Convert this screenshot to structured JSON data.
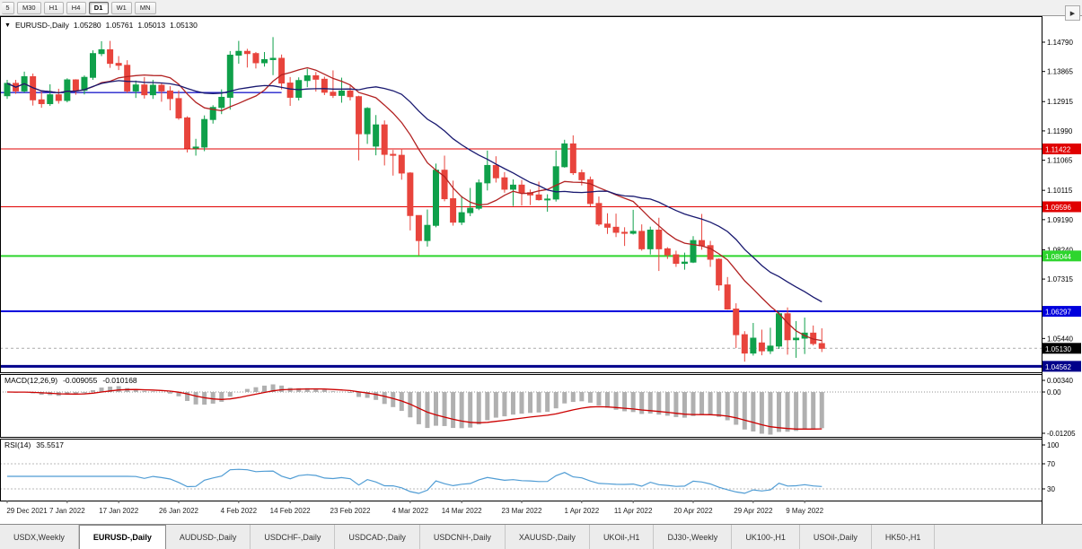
{
  "toolbar": {
    "timeframes": [
      "5",
      "M30",
      "H1",
      "H4",
      "D1",
      "W1",
      "MN"
    ],
    "active_timeframe": "D1"
  },
  "chart": {
    "symbol": "EURUSD-,Daily",
    "ohlc": {
      "open": "1.05280",
      "high": "1.05761",
      "low": "1.05013",
      "close": "1.05130"
    },
    "price_axis_ticks": [
      1.1479,
      1.13865,
      1.12915,
      1.1199,
      1.11065,
      1.10115,
      1.0919,
      1.0824,
      1.07315,
      1.0544
    ],
    "price_lines": [
      {
        "price": 1.11422,
        "label": "1.11422",
        "color": "#e00000",
        "width": 1
      },
      {
        "price": 1.09596,
        "label": "1.09596",
        "color": "#e00000",
        "width": 1
      },
      {
        "price": 1.08044,
        "label": "1.08044",
        "color": "#2ed52e",
        "width": 2
      },
      {
        "price": 1.06297,
        "label": "1.06297",
        "color": "#0000dd",
        "width": 2
      },
      {
        "price": 1.04562,
        "label": "1.04562",
        "color": "#00008b",
        "width": 3
      }
    ],
    "current_price": {
      "price": 1.0513,
      "label": "1.05130",
      "color": "#000000"
    },
    "trend_segment": {
      "price": 1.132,
      "start_index": 0,
      "end_index": 32,
      "color": "#2222cc"
    },
    "colors": {
      "up": "#0fa04a",
      "down": "#e8443c",
      "ma_fast": "#b22222",
      "ma_slow": "#191970"
    }
  },
  "chart_data": {
    "type": "candlestick",
    "title": "EURUSD-,Daily",
    "ylim": [
      1.044,
      1.156
    ],
    "x_labels": [
      "29 Dec 2021",
      "7 Jan 2022",
      "17 Jan 2022",
      "26 Jan 2022",
      "4 Feb 2022",
      "14 Feb 2022",
      "23 Feb 2022",
      "4 Mar 2022",
      "14 Mar 2022",
      "23 Mar 2022",
      "1 Apr 2022",
      "11 Apr 2022",
      "20 Apr 2022",
      "29 Apr 2022",
      "9 May 2022"
    ],
    "x_label_indices": [
      0,
      7,
      13,
      20,
      27,
      33,
      40,
      47,
      53,
      60,
      67,
      73,
      80,
      87,
      93
    ],
    "candles": [
      [
        1.131,
        1.136,
        1.13,
        1.1349
      ],
      [
        1.1349,
        1.136,
        1.1316,
        1.1325
      ],
      [
        1.1325,
        1.1386,
        1.132,
        1.137
      ],
      [
        1.137,
        1.138,
        1.1279,
        1.1297
      ],
      [
        1.1297,
        1.1323,
        1.1272,
        1.1285
      ],
      [
        1.1285,
        1.1346,
        1.1278,
        1.1313
      ],
      [
        1.1313,
        1.1332,
        1.1285,
        1.1295
      ],
      [
        1.1295,
        1.1365,
        1.1289,
        1.136
      ],
      [
        1.136,
        1.1362,
        1.1313,
        1.1327
      ],
      [
        1.1327,
        1.1374,
        1.1314,
        1.1368
      ],
      [
        1.1368,
        1.1453,
        1.136,
        1.1443
      ],
      [
        1.1443,
        1.1482,
        1.1435,
        1.1455
      ],
      [
        1.1455,
        1.1483,
        1.1398,
        1.1412
      ],
      [
        1.1412,
        1.1435,
        1.1391,
        1.1406
      ],
      [
        1.1406,
        1.1422,
        1.1319,
        1.1325
      ],
      [
        1.1325,
        1.1358,
        1.1303,
        1.1344
      ],
      [
        1.1344,
        1.1369,
        1.1301,
        1.1313
      ],
      [
        1.1313,
        1.136,
        1.13,
        1.1343
      ],
      [
        1.1343,
        1.1349,
        1.1291,
        1.1325
      ],
      [
        1.1325,
        1.134,
        1.1264,
        1.1301
      ],
      [
        1.1301,
        1.1327,
        1.1234,
        1.124
      ],
      [
        1.124,
        1.1245,
        1.1131,
        1.1145
      ],
      [
        1.1145,
        1.1174,
        1.1121,
        1.1148
      ],
      [
        1.1148,
        1.1248,
        1.1135,
        1.1235
      ],
      [
        1.1235,
        1.128,
        1.1222,
        1.1273
      ],
      [
        1.1273,
        1.133,
        1.1252,
        1.1305
      ],
      [
        1.1305,
        1.1451,
        1.1266,
        1.1438
      ],
      [
        1.1438,
        1.1483,
        1.1411,
        1.145
      ],
      [
        1.145,
        1.1458,
        1.1399,
        1.1443
      ],
      [
        1.1443,
        1.1448,
        1.1396,
        1.1414
      ],
      [
        1.1414,
        1.1448,
        1.1402,
        1.1424
      ],
      [
        1.1424,
        1.1495,
        1.1375,
        1.1428
      ],
      [
        1.1428,
        1.144,
        1.133,
        1.135
      ],
      [
        1.135,
        1.1369,
        1.1278,
        1.1305
      ],
      [
        1.1305,
        1.1368,
        1.1295,
        1.1358
      ],
      [
        1.1358,
        1.1395,
        1.1337,
        1.1373
      ],
      [
        1.1373,
        1.1385,
        1.1323,
        1.1362
      ],
      [
        1.1362,
        1.137,
        1.1312,
        1.1321
      ],
      [
        1.1321,
        1.139,
        1.1303,
        1.1311
      ],
      [
        1.1311,
        1.1367,
        1.1288,
        1.1325
      ],
      [
        1.1325,
        1.1343,
        1.1295,
        1.1307
      ],
      [
        1.1307,
        1.131,
        1.1106,
        1.119
      ],
      [
        1.119,
        1.1274,
        1.1158,
        1.127
      ],
      [
        1.1151,
        1.1249,
        1.1122,
        1.1218
      ],
      [
        1.1218,
        1.1232,
        1.109,
        1.1125
      ],
      [
        1.1125,
        1.1139,
        1.1058,
        1.1122
      ],
      [
        1.1122,
        1.1143,
        1.1045,
        1.1066
      ],
      [
        1.1066,
        1.1069,
        1.0885,
        1.0932
      ],
      [
        1.0932,
        1.0932,
        1.0806,
        1.0853
      ],
      [
        1.0853,
        1.0951,
        1.0834,
        1.0901
      ],
      [
        1.0901,
        1.1096,
        1.0895,
        1.1075
      ],
      [
        1.1075,
        1.1121,
        1.0977,
        1.0985
      ],
      [
        1.0985,
        1.1042,
        1.09,
        1.0911
      ],
      [
        1.0911,
        1.0994,
        1.0902,
        1.0941
      ],
      [
        1.0941,
        1.1019,
        1.093,
        1.0955
      ],
      [
        1.0955,
        1.1046,
        1.0949,
        1.1035
      ],
      [
        1.1035,
        1.1137,
        1.1011,
        1.109
      ],
      [
        1.109,
        1.1119,
        1.1036,
        1.1051
      ],
      [
        1.1051,
        1.1069,
        1.1004,
        1.1015
      ],
      [
        1.1015,
        1.1046,
        1.0962,
        1.1028
      ],
      [
        1.1028,
        1.1044,
        1.0963,
        1.1004
      ],
      [
        1.1004,
        1.1014,
        1.0965,
        1.0997
      ],
      [
        1.0997,
        1.1039,
        1.0979,
        1.0982
      ],
      [
        1.0982,
        1.0999,
        1.0944,
        1.0984
      ],
      [
        1.0984,
        1.1137,
        1.0976,
        1.1086
      ],
      [
        1.1086,
        1.1171,
        1.1083,
        1.1158
      ],
      [
        1.1158,
        1.1185,
        1.106,
        1.1067
      ],
      [
        1.1067,
        1.1077,
        1.1027,
        1.1045
      ],
      [
        1.1045,
        1.1055,
        1.0961,
        1.097
      ],
      [
        1.097,
        1.0992,
        1.0899,
        1.0905
      ],
      [
        1.0905,
        1.0939,
        1.0874,
        1.0895
      ],
      [
        1.0895,
        1.0938,
        1.0864,
        1.0879
      ],
      [
        1.0879,
        1.0895,
        1.0836,
        1.0876
      ],
      [
        1.0876,
        1.095,
        1.0872,
        1.0882
      ],
      [
        1.0882,
        1.0904,
        1.0821,
        1.0827
      ],
      [
        1.0827,
        1.0897,
        1.0809,
        1.0886
      ],
      [
        1.0886,
        1.0925,
        1.0757,
        1.0827
      ],
      [
        1.0827,
        1.0832,
        1.0795,
        1.0808
      ],
      [
        1.0808,
        1.0821,
        1.077,
        1.0781
      ],
      [
        1.0781,
        1.0815,
        1.0761,
        1.0785
      ],
      [
        1.0785,
        1.0867,
        1.0782,
        1.0853
      ],
      [
        1.0853,
        1.0937,
        1.0824,
        1.0837
      ],
      [
        1.0837,
        1.0852,
        1.077,
        1.0794
      ],
      [
        1.0794,
        1.0797,
        1.0695,
        1.0713
      ],
      [
        1.0713,
        1.0738,
        1.0635,
        1.0637
      ],
      [
        1.0637,
        1.0655,
        1.0514,
        1.0556
      ],
      [
        1.0556,
        1.0567,
        1.0471,
        1.0498
      ],
      [
        1.0498,
        1.0593,
        1.049,
        1.0545
      ],
      [
        1.053,
        1.0572,
        1.0491,
        1.0505
      ],
      [
        1.0505,
        1.0578,
        1.0495,
        1.052
      ],
      [
        1.052,
        1.0632,
        1.0511,
        1.0622
      ],
      [
        1.0622,
        1.0642,
        1.0493,
        1.054
      ],
      [
        1.054,
        1.0599,
        1.0483,
        1.0545
      ],
      [
        1.0545,
        1.061,
        1.0495,
        1.0561
      ],
      [
        1.0561,
        1.0585,
        1.0522,
        1.0528
      ],
      [
        1.0528,
        1.05761,
        1.05013,
        1.0513
      ]
    ]
  },
  "macd": {
    "name": "MACD(12,26,9)",
    "main_value": "-0.009055",
    "signal_value": "-0.010168",
    "params": {
      "fast": 12,
      "slow": 26,
      "signal": 9
    },
    "axis_ticks": [
      "0.00340",
      "0.00",
      "-0.01205"
    ],
    "histogram_color": "#b0b0b0",
    "signal_color": "#cc0000"
  },
  "rsi": {
    "name": "RSI(14)",
    "value": "35.5517",
    "period": 14,
    "axis_ticks": [
      "100",
      "70",
      "30"
    ],
    "levels": [
      70,
      30
    ],
    "line_color": "#4f9cd4"
  },
  "tabs": {
    "items": [
      "USDX,Weekly",
      "EURUSD-,Daily",
      "AUDUSD-,Daily",
      "USDCHF-,Daily",
      "USDCAD-,Daily",
      "USDCNH-,Daily",
      "XAUUSD-,Daily",
      "UKOil-,H1",
      "DJ30-,Weekly",
      "UK100-,H1",
      "USOil-,Daily",
      "HK50-,H1"
    ],
    "active": "EURUSD-,Daily",
    "scroll_right_icon": "▶"
  }
}
